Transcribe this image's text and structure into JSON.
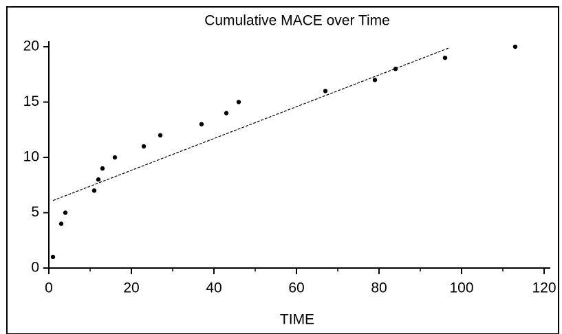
{
  "chart_data": {
    "type": "scatter",
    "title": "Cumulative MACE over Time",
    "x_label": "TIME",
    "series": [
      {
        "color": "#000000",
        "x": [
          1,
          3,
          4,
          11,
          12,
          13,
          16,
          23,
          27,
          37,
          43,
          46,
          67,
          79,
          84,
          96,
          113
        ],
        "values": [
          1,
          4,
          5,
          7,
          8,
          9,
          10,
          11,
          12,
          13,
          14,
          15,
          16,
          17,
          18,
          19,
          20
        ]
      }
    ],
    "trend_line": {
      "x": [
        1,
        97
      ],
      "values": [
        6.1,
        19.9
      ],
      "color": "#000000",
      "dashed": true
    },
    "xlim": [
      0,
      121.5
    ],
    "ylim": [
      0,
      20.5
    ],
    "xticks": [
      0,
      20,
      40,
      60,
      80,
      100,
      120
    ],
    "xminorticks": [
      10,
      30,
      50,
      70,
      90,
      110
    ],
    "yticks": [
      0,
      5,
      10,
      15,
      20
    ],
    "grid": false
  }
}
